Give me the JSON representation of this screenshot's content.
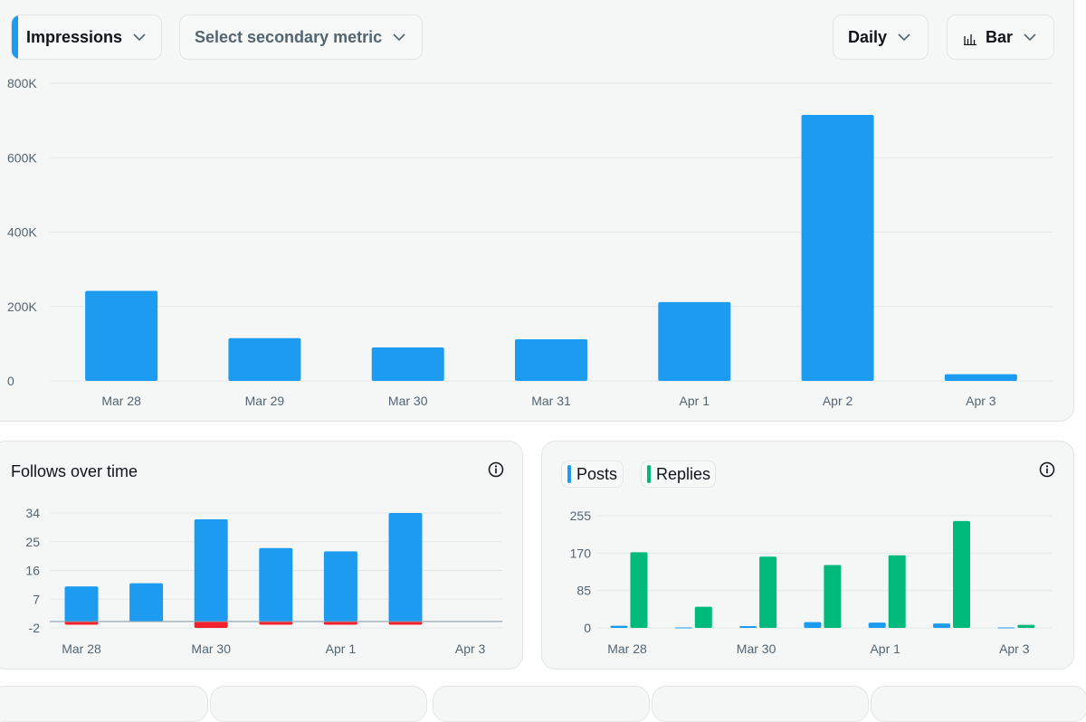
{
  "toolbar": {
    "metric_label": "Impressions",
    "secondary_label": "Select secondary metric",
    "period_label": "Daily",
    "chart_type_label": "Bar"
  },
  "follows": {
    "title": "Follows over time"
  },
  "posts_legend": {
    "posts_label": "Posts",
    "replies_label": "Replies"
  },
  "colors": {
    "blue": "#1d9bf0",
    "green": "#00ba7c",
    "red": "#f4212e"
  },
  "icons": [
    "chevron-down-icon",
    "bar-chart-icon",
    "info-icon"
  ],
  "chart_data": [
    {
      "type": "bar",
      "categories": [
        "Mar 28",
        "Mar 29",
        "Mar 30",
        "Mar 31",
        "Apr 1",
        "Apr 2",
        "Apr 3"
      ],
      "series": [
        {
          "name": "Impressions",
          "values": [
            242000,
            115000,
            90000,
            112000,
            212000,
            715000,
            18000
          ]
        }
      ],
      "yticks": [
        "0",
        "200K",
        "400K",
        "600K",
        "800K"
      ],
      "ylim": [
        0,
        800000
      ],
      "grid": true
    },
    {
      "type": "bar",
      "title": "Follows over time",
      "categories": [
        "Mar 28",
        "Mar 29",
        "Mar 30",
        "Mar 31",
        "Apr 1",
        "Apr 2",
        "Apr 3"
      ],
      "xtick_labels": [
        "Mar 28",
        "Mar 30",
        "Apr 1",
        "Apr 3"
      ],
      "positive": [
        11,
        12,
        32,
        23,
        22,
        34,
        0
      ],
      "negative": [
        -1,
        0,
        -2,
        -1,
        -1,
        -1,
        0
      ],
      "yticks": [
        "-2",
        "7",
        "16",
        "25",
        "34"
      ],
      "ylim": [
        -2,
        34
      ],
      "grid": true
    },
    {
      "type": "bar",
      "categories": [
        "Mar 28",
        "Mar 29",
        "Mar 30",
        "Mar 31",
        "Apr 1",
        "Apr 2",
        "Apr 3"
      ],
      "xtick_labels": [
        "Mar 28",
        "Mar 30",
        "Apr 1",
        "Apr 3"
      ],
      "series": [
        {
          "name": "Posts",
          "values": [
            5,
            1,
            4,
            13,
            12,
            10,
            1
          ]
        },
        {
          "name": "Replies",
          "values": [
            172,
            48,
            162,
            143,
            165,
            243,
            7
          ]
        }
      ],
      "yticks": [
        "0",
        "85",
        "170",
        "255"
      ],
      "ylim": [
        0,
        255
      ],
      "grid": true,
      "legend": "top-left"
    }
  ]
}
